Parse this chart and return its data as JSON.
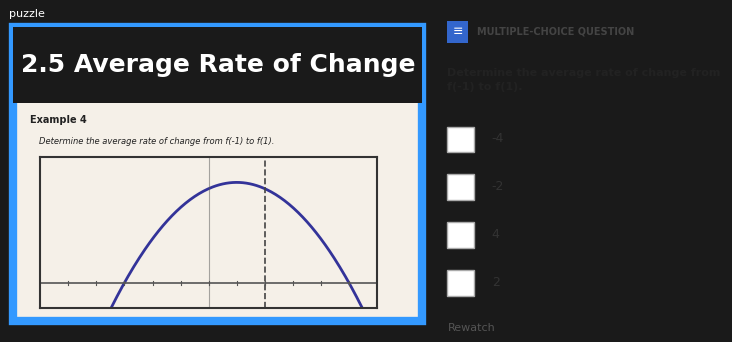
{
  "title_text": "puzzle",
  "slide_title": "2.5 Average Rate of Change",
  "example_label": "Example 4",
  "example_desc": "Determine the average rate of change from f(-1) to f(1).",
  "question_header": "MULTIPLE-CHOICE QUESTION",
  "question_text": "Determine the average rate of change from\nf(-1) to f(1).",
  "choices": [
    "-4",
    "-2",
    "4",
    "2"
  ],
  "rewatch_text": "Rewatch",
  "bg_outer": "#1a1a1a",
  "bg_slide": "#f5f0e8",
  "bg_title_bar": "#1a1a1a",
  "slide_border_color": "#3399ff",
  "title_font_color": "#ffffff",
  "title_font_size": 18,
  "graph_bg": "#f5f0e8",
  "graph_border": "#333333",
  "curve_color": "#333399",
  "axis_color": "#555555",
  "dashed_color": "#444444",
  "right_bg": "#fdf6e3",
  "right_border": "#cccccc",
  "choice_box_color": "#cccccc",
  "mcq_icon_color": "#3366cc",
  "question_text_color": "#222222",
  "choice_text_color": "#333333",
  "rewatch_color": "#555555"
}
